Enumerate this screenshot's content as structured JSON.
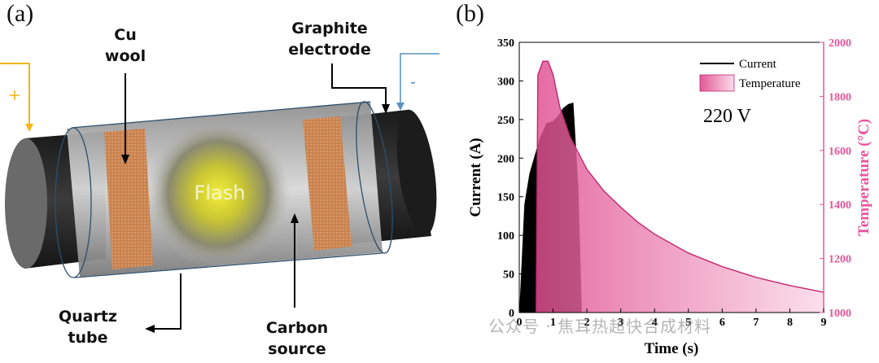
{
  "panel_a": {
    "label": "(a)",
    "annotations": {
      "cu_wool": [
        "Cu",
        "wool"
      ],
      "graphite_electrode": [
        "Graphite",
        "electrode"
      ],
      "quartz_tube": [
        "Quartz",
        "tube"
      ],
      "carbon_source": [
        "Carbon",
        "source"
      ],
      "flash": "Flash",
      "plus": "+",
      "minus": "-"
    },
    "colors": {
      "positive_wire": "#f2b51a",
      "negative_wire": "#5a8fc0",
      "copper": "#c97a4a",
      "graphite": "#2a2a2a",
      "flash_glow": "#e6e23a"
    }
  },
  "panel_b": {
    "label": "(b)",
    "voltage_label": "220 V",
    "legend": [
      "Current",
      "Temperature"
    ]
  },
  "watermark": "公众号 · 焦耳热超快合成材料",
  "chart_data": {
    "type": "area",
    "xlabel": "Time (s)",
    "ylabel": "Current (A)",
    "y2label": "Temperature (°C)",
    "xlim": [
      0,
      9
    ],
    "ylim": [
      0,
      350
    ],
    "y2lim": [
      1000,
      2000
    ],
    "xticks": [
      0,
      1,
      2,
      3,
      4,
      5,
      6,
      7,
      8,
      9
    ],
    "yticks": [
      0,
      50,
      100,
      150,
      200,
      250,
      300,
      350
    ],
    "y2ticks": [
      1000,
      1200,
      1400,
      1600,
      1800,
      2000
    ],
    "series": [
      {
        "name": "Current",
        "axis": "left",
        "color": "#000000",
        "x": [
          0.0,
          0.15,
          0.3,
          0.5,
          0.6,
          0.8,
          1.0,
          1.15,
          1.3,
          1.45,
          1.6,
          1.75,
          1.85
        ],
        "values": [
          0,
          140,
          180,
          210,
          225,
          245,
          248,
          255,
          265,
          270,
          272,
          160,
          0
        ]
      },
      {
        "name": "Temperature",
        "axis": "right",
        "color": "#e8559a",
        "x": [
          0.5,
          0.55,
          0.7,
          0.85,
          1.0,
          1.2,
          1.5,
          2.0,
          2.5,
          3.0,
          3.5,
          4.0,
          5.0,
          6.0,
          7.0,
          8.0,
          9.0
        ],
        "values": [
          1000,
          1880,
          1930,
          1930,
          1880,
          1760,
          1650,
          1530,
          1450,
          1390,
          1335,
          1290,
          1220,
          1170,
          1130,
          1100,
          1075
        ]
      }
    ]
  }
}
